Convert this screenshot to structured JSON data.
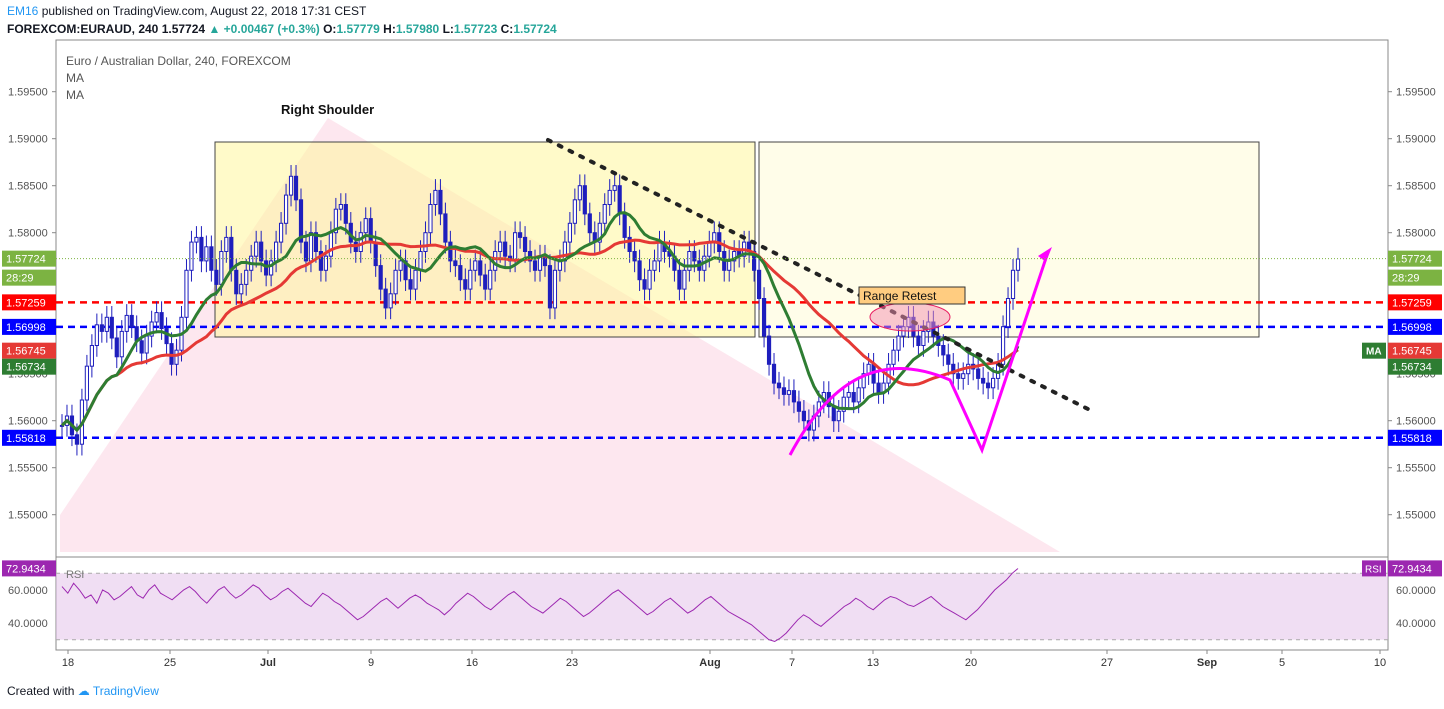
{
  "header": {
    "author": "EM16",
    "published_text": "published on TradingView.com, August 22, 2018 17:31 CEST",
    "symbol_line": "FOREXCOM:EURAUD, 240",
    "last": "1.57724",
    "change": "+0.00467 (+0.3%)",
    "open_label": "O:",
    "open": "1.57779",
    "high_label": "H:",
    "high": "1.57980",
    "low_label": "L:",
    "low": "1.57723",
    "close_label": "C:",
    "close": "1.57724"
  },
  "legend": {
    "title": "Euro / Australian Dollar, 240, FOREXCOM",
    "ma1": "MA",
    "ma2": "MA"
  },
  "footer": {
    "created_with": "Created with",
    "brand": "TradingView"
  },
  "colors": {
    "candle": "#1e1ebd",
    "ma_fast": "#2e7d32",
    "ma_slow": "#e53935",
    "level_red": "#ff0000",
    "level_blue": "#0000ff",
    "rsi": "#9c27b0",
    "arrow": "#ff00ff",
    "zone_yellow": "#fff59d",
    "pink": "#f8bbd0"
  },
  "chart_data": {
    "type": "candlestick",
    "symbol": "FOREXCOM:EURAUD",
    "timeframe": "240",
    "ylim": [
      1.5455,
      1.6005
    ],
    "y_ticks": [
      "1.59500",
      "1.59000",
      "1.58500",
      "1.58000",
      "1.57500",
      "1.57000",
      "1.56500",
      "1.56000",
      "1.55500",
      "1.55000"
    ],
    "x_ticks": [
      "18",
      "25",
      "Jul",
      "9",
      "16",
      "23",
      "Aug",
      "7",
      "13",
      "20",
      "27",
      "Sep",
      "5",
      "10"
    ],
    "x_ticks_bold": [
      "Jul",
      "Aug",
      "Sep"
    ],
    "price_labels": [
      {
        "text": "1.57724",
        "kind": "last"
      },
      {
        "text": "28:29",
        "kind": "countdown"
      },
      {
        "text": "1.57259",
        "kind": "red-line"
      },
      {
        "text": "1.56998",
        "kind": "blue-line"
      },
      {
        "text": "1.56745",
        "kind": "ma-red"
      },
      {
        "text": "1.56734",
        "kind": "ma-green"
      },
      {
        "text": "1.55818",
        "kind": "blue-line"
      }
    ],
    "horizontal_levels": [
      1.57259,
      1.56998,
      1.55818
    ],
    "close_series": [
      1.5595,
      1.5605,
      1.5585,
      1.5575,
      1.5622,
      1.5658,
      1.568,
      1.5702,
      1.5695,
      1.571,
      1.5688,
      1.5668,
      1.5695,
      1.5712,
      1.57,
      1.5685,
      1.5672,
      1.569,
      1.5705,
      1.5715,
      1.5698,
      1.5682,
      1.566,
      1.5675,
      1.571,
      1.576,
      1.579,
      1.5795,
      1.577,
      1.5785,
      1.576,
      1.5745,
      1.578,
      1.5795,
      1.576,
      1.5735,
      1.5745,
      1.576,
      1.5775,
      1.579,
      1.577,
      1.5755,
      1.577,
      1.579,
      1.581,
      1.584,
      1.586,
      1.5835,
      1.579,
      1.577,
      1.58,
      1.578,
      1.576,
      1.5775,
      1.58,
      1.5825,
      1.583,
      1.581,
      1.579,
      1.578,
      1.58,
      1.5815,
      1.579,
      1.5765,
      1.574,
      1.572,
      1.5735,
      1.576,
      1.577,
      1.575,
      1.574,
      1.576,
      1.578,
      1.58,
      1.583,
      1.5845,
      1.582,
      1.579,
      1.577,
      1.5765,
      1.575,
      1.574,
      1.576,
      1.577,
      1.5755,
      1.574,
      1.576,
      1.578,
      1.579,
      1.5775,
      1.577,
      1.58,
      1.5795,
      1.578,
      1.577,
      1.576,
      1.5775,
      1.5765,
      1.572,
      1.576,
      1.577,
      1.579,
      1.581,
      1.5835,
      1.585,
      1.582,
      1.58,
      1.579,
      1.581,
      1.583,
      1.5845,
      1.585,
      1.582,
      1.5795,
      1.578,
      1.577,
      1.575,
      1.574,
      1.576,
      1.577,
      1.579,
      1.578,
      1.5775,
      1.576,
      1.574,
      1.576,
      1.578,
      1.577,
      1.576,
      1.5775,
      1.579,
      1.58,
      1.578,
      1.576,
      1.577,
      1.578,
      1.5775,
      1.579,
      1.578,
      1.576,
      1.573,
      1.569,
      1.566,
      1.564,
      1.5635,
      1.5628,
      1.5632,
      1.562,
      1.561,
      1.56,
      1.559,
      1.5605,
      1.562,
      1.563,
      1.5615,
      1.56,
      1.561,
      1.5625,
      1.563,
      1.562,
      1.5635,
      1.565,
      1.566,
      1.564,
      1.563,
      1.564,
      1.566,
      1.5675,
      1.569,
      1.57,
      1.571,
      1.569,
      1.568,
      1.5695,
      1.5705,
      1.569,
      1.568,
      1.567,
      1.566,
      1.565,
      1.5645,
      1.565,
      1.566,
      1.5655,
      1.5645,
      1.564,
      1.5635,
      1.5645,
      1.566,
      1.57,
      1.573,
      1.576,
      1.5772
    ],
    "annotations": [
      {
        "text": "Right Shoulder",
        "kind": "label"
      },
      {
        "text": "Range Retest",
        "kind": "callout"
      }
    ],
    "rsi": {
      "label": "RSI",
      "value_label": "72.9434",
      "ticks": [
        "60.0000",
        "40.0000"
      ],
      "series": [
        62,
        58,
        64,
        60,
        55,
        57,
        52,
        60,
        58,
        54,
        56,
        59,
        62,
        57,
        55,
        60,
        63,
        58,
        56,
        54,
        57,
        60,
        62,
        59,
        55,
        52,
        56,
        60,
        62,
        58,
        55,
        57,
        60,
        63,
        61,
        57,
        54,
        56,
        59,
        61,
        58,
        55,
        52,
        50,
        54,
        58,
        56,
        53,
        51,
        48,
        45,
        42,
        44,
        47,
        50,
        53,
        55,
        52,
        49,
        52,
        55,
        57,
        55,
        52,
        50,
        48,
        45,
        48,
        52,
        55,
        58,
        56,
        53,
        50,
        48,
        51,
        54,
        57,
        59,
        56,
        53,
        50,
        48,
        46,
        49,
        52,
        55,
        53,
        50,
        47,
        44,
        46,
        49,
        52,
        55,
        58,
        60,
        57,
        54,
        51,
        48,
        45,
        47,
        50,
        53,
        55,
        52,
        49,
        46,
        48,
        51,
        54,
        56,
        53,
        50,
        47,
        45,
        43,
        41,
        39,
        36,
        33,
        30,
        29,
        31,
        34,
        38,
        42,
        45,
        43,
        40,
        38,
        41,
        44,
        47,
        50,
        52,
        55,
        53,
        50,
        48,
        51,
        54,
        56,
        55,
        53,
        51,
        50,
        52,
        54,
        56,
        53,
        50,
        48,
        46,
        44,
        42,
        45,
        48,
        52,
        56,
        60,
        63,
        66,
        70,
        72.9
      ]
    }
  }
}
